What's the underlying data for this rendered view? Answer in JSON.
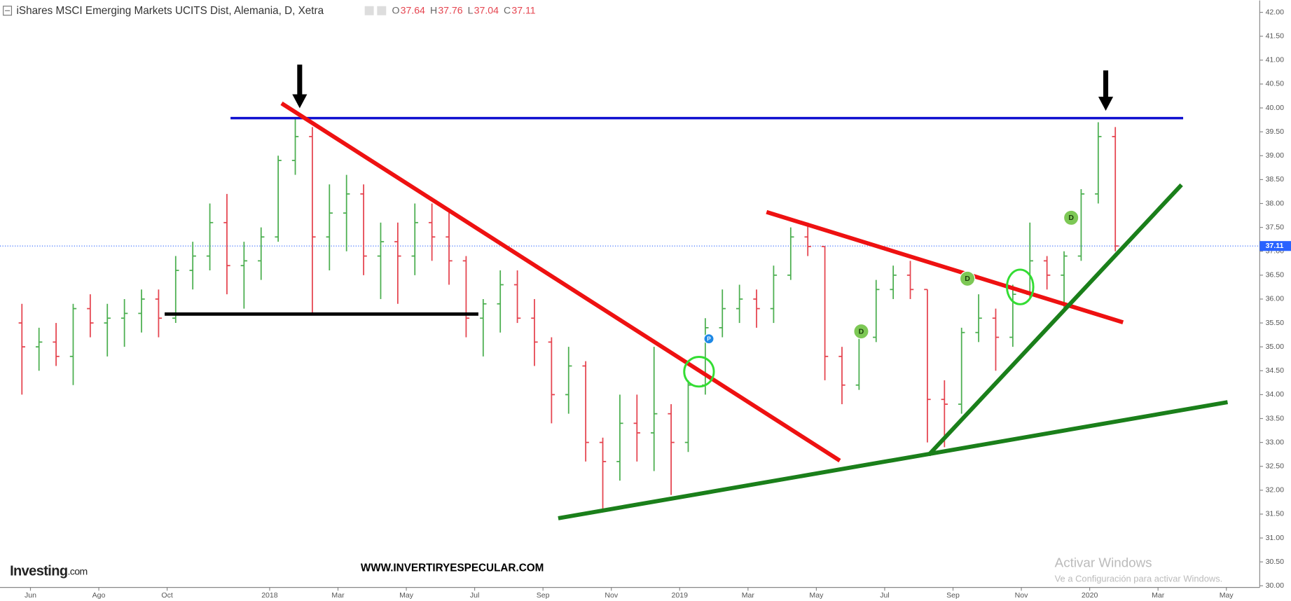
{
  "chart_data": {
    "type": "ohlc",
    "title": "iShares MSCI Emerging Markets UCITS Dist, Alemania, D, Xetra",
    "ohlc_labels": [
      "O",
      "H",
      "L",
      "C"
    ],
    "ohlc_values": [
      37.64,
      37.76,
      37.04,
      37.11
    ],
    "current_price": 37.11,
    "categories": [
      null,
      "Jun",
      null,
      null,
      null,
      "Ago",
      null,
      null,
      null,
      "Oct",
      null,
      null,
      null,
      null,
      null,
      "2018",
      null,
      null,
      null,
      "Mar",
      null,
      null,
      null,
      "May",
      null,
      null,
      null,
      "Jul",
      null,
      null,
      null,
      "Sep",
      null,
      null,
      null,
      "Nov",
      null,
      null,
      null,
      "2019",
      null,
      null,
      null,
      "Mar",
      null,
      null,
      null,
      "May",
      null,
      null,
      null,
      "Jul",
      null,
      null,
      null,
      "Sep",
      null,
      null,
      null,
      "Nov",
      null,
      null,
      null,
      "2020",
      null,
      null,
      null,
      "Mar",
      null,
      null,
      null,
      "May",
      null
    ],
    "open": [
      35.5,
      35.0,
      35.1,
      34.8,
      35.8,
      35.5,
      35.6,
      35.7,
      36.0,
      35.6,
      36.6,
      36.9,
      37.6,
      36.7,
      36.8,
      37.3,
      38.9,
      39.4,
      37.3,
      37.8,
      38.2,
      36.9,
      37.2,
      36.9,
      37.6,
      37.3,
      36.8,
      35.6,
      35.9,
      36.3,
      35.6,
      35.1,
      34.0,
      34.6,
      33.0,
      32.6,
      33.4,
      33.2,
      33.6,
      33.0,
      34.2,
      35.4,
      35.8,
      36.0,
      35.8,
      36.5,
      37.3,
      37.1,
      34.8,
      34.2,
      35.2,
      36.2,
      36.5,
      36.2,
      33.9,
      33.8,
      35.3,
      35.6,
      35.2,
      36.1,
      36.8,
      36.5,
      36.9,
      38.2,
      39.4,
      null,
      null,
      null,
      null,
      null,
      null,
      null,
      null
    ],
    "high": [
      35.9,
      35.4,
      35.5,
      35.9,
      36.1,
      35.9,
      36.0,
      36.2,
      36.2,
      36.9,
      37.2,
      38.0,
      38.2,
      37.2,
      37.5,
      39.0,
      39.8,
      39.6,
      38.4,
      38.6,
      38.4,
      37.6,
      37.6,
      38.0,
      38.0,
      37.9,
      36.9,
      36.0,
      36.6,
      36.6,
      36.0,
      35.2,
      35.0,
      34.7,
      33.1,
      34.0,
      34.0,
      35.0,
      33.8,
      34.3,
      35.6,
      36.2,
      36.3,
      36.2,
      36.7,
      37.5,
      37.6,
      37.1,
      35.0,
      35.3,
      36.4,
      36.7,
      36.8,
      36.2,
      34.3,
      35.4,
      36.1,
      35.8,
      36.3,
      37.6,
      36.9,
      37.0,
      38.3,
      39.7,
      39.6,
      null,
      null,
      null,
      null,
      null,
      null,
      null,
      null
    ],
    "low": [
      34.0,
      34.5,
      34.6,
      34.2,
      35.2,
      34.8,
      35.0,
      35.3,
      35.2,
      35.5,
      36.2,
      36.6,
      36.1,
      35.8,
      36.4,
      37.2,
      38.6,
      35.7,
      36.6,
      37.0,
      36.5,
      36.0,
      35.9,
      36.5,
      36.8,
      36.3,
      35.2,
      34.8,
      35.3,
      35.5,
      34.6,
      33.4,
      33.6,
      32.6,
      31.6,
      32.2,
      32.6,
      32.4,
      31.9,
      32.8,
      34.0,
      35.2,
      35.5,
      35.4,
      35.5,
      36.4,
      36.9,
      34.3,
      33.8,
      34.1,
      35.1,
      36.0,
      36.0,
      33.0,
      32.9,
      33.6,
      35.1,
      34.5,
      35.0,
      36.0,
      36.2,
      35.8,
      36.8,
      38.0,
      37.0,
      null,
      null,
      null,
      null,
      null,
      null,
      null,
      null
    ],
    "close": [
      35.0,
      35.1,
      34.8,
      35.8,
      35.5,
      35.6,
      35.7,
      36.0,
      35.6,
      36.6,
      36.9,
      37.6,
      36.7,
      36.8,
      37.3,
      38.9,
      39.4,
      37.3,
      37.8,
      38.2,
      36.9,
      37.2,
      36.9,
      37.6,
      37.3,
      36.8,
      35.6,
      35.9,
      36.3,
      35.6,
      35.1,
      34.0,
      34.6,
      33.0,
      32.6,
      33.4,
      33.2,
      33.6,
      33.0,
      34.2,
      35.4,
      35.8,
      36.0,
      35.8,
      36.5,
      37.3,
      37.1,
      34.8,
      34.2,
      35.2,
      36.2,
      36.5,
      36.2,
      33.9,
      33.8,
      35.3,
      35.6,
      35.2,
      36.1,
      36.8,
      36.5,
      36.9,
      38.2,
      39.4,
      37.11,
      null,
      null,
      null,
      null,
      null,
      null,
      null,
      null
    ],
    "up_color": "#4caf50",
    "down_color": "#e5444f",
    "ylim": [
      30,
      42.25
    ],
    "yticks": [
      {
        "value": 30,
        "label": "30.00"
      },
      {
        "value": 30.5,
        "label": "30.50"
      },
      {
        "value": 31,
        "label": "31.00"
      },
      {
        "value": 31.5,
        "label": "31.50"
      },
      {
        "value": 32,
        "label": "32.00"
      },
      {
        "value": 32.5,
        "label": "32.50"
      },
      {
        "value": 33,
        "label": "33.00"
      },
      {
        "value": 33.5,
        "label": "33.50"
      },
      {
        "value": 34,
        "label": "34.00"
      },
      {
        "value": 34.5,
        "label": "34.50"
      },
      {
        "value": 35,
        "label": "35.00"
      },
      {
        "value": 35.5,
        "label": "35.50"
      },
      {
        "value": 36,
        "label": "36.00"
      },
      {
        "value": 36.5,
        "label": "36.50"
      },
      {
        "value": 37,
        "label": "37.00"
      },
      {
        "value": 37.5,
        "label": "37.50"
      },
      {
        "value": 38,
        "label": "38.00"
      },
      {
        "value": 38.5,
        "label": "38.50"
      },
      {
        "value": 39,
        "label": "39.00"
      },
      {
        "value": 39.5,
        "label": "39.50"
      },
      {
        "value": 40,
        "label": "40.00"
      },
      {
        "value": 40.5,
        "label": "40.50"
      },
      {
        "value": 41,
        "label": "41.00"
      },
      {
        "value": 41.5,
        "label": "41.50"
      },
      {
        "value": 42,
        "label": "42.00"
      }
    ],
    "event_markers": [
      "P",
      "D",
      "D",
      "D"
    ],
    "overlay_texts": {
      "logo": "Investing",
      "logo_suffix": ".com",
      "website": "WWW.INVERTIRYESPECULAR.COM",
      "activation_title": "Activar Windows",
      "activation_note": "Ve a Configuración para activar Windows."
    }
  }
}
